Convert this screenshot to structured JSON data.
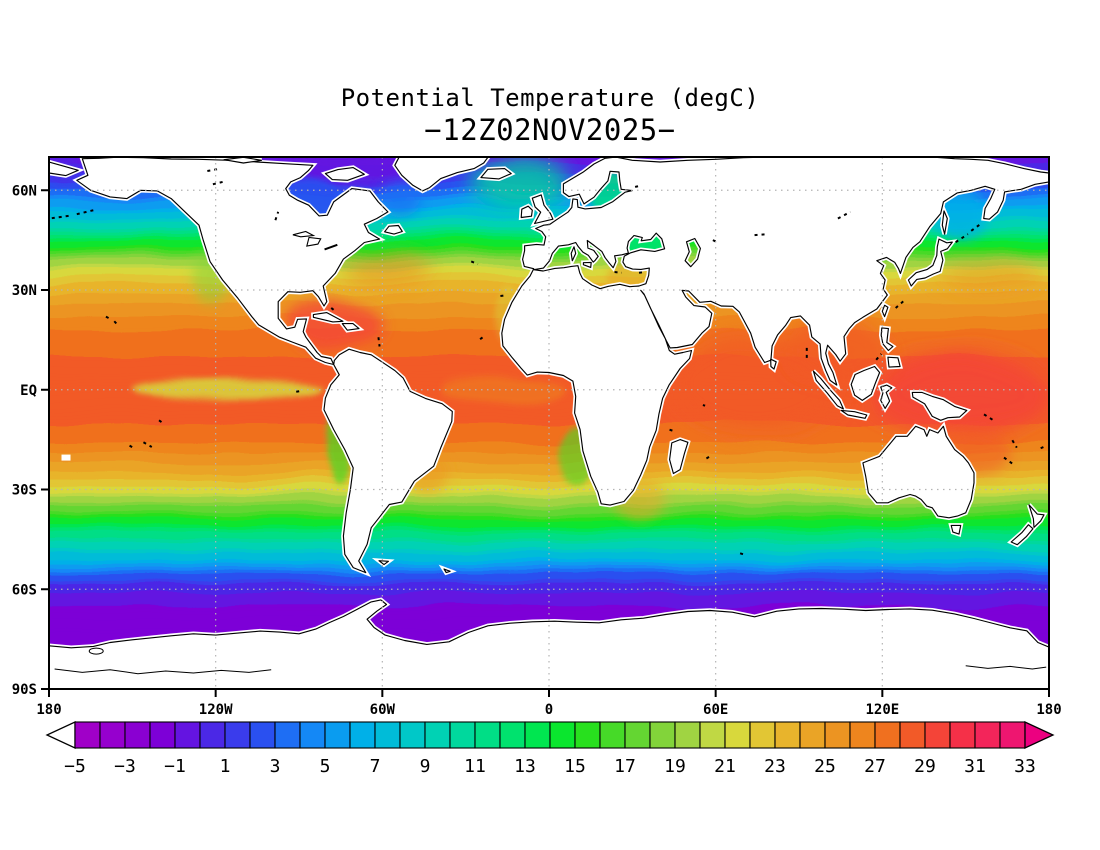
{
  "title": {
    "line1": "Potential Temperature (degC)",
    "line2": "−12Z02NOV2025−"
  },
  "map": {
    "lat_ticks": [
      {
        "label": "60N",
        "lat": 60
      },
      {
        "label": "30N",
        "lat": 30
      },
      {
        "label": "EQ",
        "lat": 0
      },
      {
        "label": "30S",
        "lat": -30
      },
      {
        "label": "60S",
        "lat": -60
      },
      {
        "label": "90S",
        "lat": -90
      }
    ],
    "lon_ticks": [
      {
        "label": "180",
        "lon": -180
      },
      {
        "label": "120W",
        "lon": -120
      },
      {
        "label": "60W",
        "lon": -60
      },
      {
        "label": "0",
        "lon": 0
      },
      {
        "label": "60E",
        "lon": 60
      },
      {
        "label": "120E",
        "lon": 120
      },
      {
        "label": "180",
        "lon": 180
      }
    ],
    "grid_lats": [
      60,
      30,
      0,
      -30,
      -60
    ],
    "grid_lons": [
      -120,
      -60,
      0,
      60,
      120
    ],
    "grid_color": "#b4b4b4",
    "land_color": "#ffffff",
    "coast_color": "#000000"
  },
  "colorbar": {
    "tick_labels": [
      "−5",
      "−3",
      "−1",
      "1",
      "3",
      "5",
      "7",
      "9",
      "11",
      "13",
      "15",
      "17",
      "19",
      "21",
      "23",
      "25",
      "27",
      "29",
      "31",
      "33"
    ],
    "tick_values": [
      -5,
      -3,
      -1,
      1,
      3,
      5,
      7,
      9,
      11,
      13,
      15,
      17,
      19,
      21,
      23,
      25,
      27,
      29,
      31,
      33
    ],
    "cell_min": -5,
    "cell_max": 33,
    "cell_step": 1,
    "under_color": "#ffffff",
    "over_color": "#ec0080",
    "colors": [
      "#a000c8",
      "#9600ce",
      "#8a00d2",
      "#7d00d7",
      "#6414e1",
      "#4b28e6",
      "#3a3cec",
      "#2a50f0",
      "#1e6ef4",
      "#1488f6",
      "#0a9cf0",
      "#00b0e8",
      "#00bcd8",
      "#00c8c8",
      "#00d2b4",
      "#00d89d",
      "#00de86",
      "#00e26e",
      "#00e650",
      "#0ae62e",
      "#28e01e",
      "#46da28",
      "#64d632",
      "#82d43a",
      "#a0d442",
      "#c0d844",
      "#d8d83c",
      "#e2c634",
      "#e8b42c",
      "#eaa426",
      "#ec9422",
      "#ee851e",
      "#f0701f",
      "#f25a28",
      "#f44438",
      "#f53048",
      "#f3255a",
      "#ee1670"
    ]
  },
  "chart_data": {
    "type": "heatmap",
    "title": "Potential Temperature (degC)",
    "subtitle": "−12Z02NOV2025−",
    "units": "degC",
    "projection": "equirectangular",
    "lon_range": [
      -180,
      180
    ],
    "lat_range": [
      -90,
      70
    ],
    "x_ticks": [
      "180",
      "120W",
      "60W",
      "0",
      "60E",
      "120E",
      "180"
    ],
    "y_ticks": [
      "60N",
      "30N",
      "EQ",
      "30S",
      "60S",
      "90S"
    ],
    "grid": "dotted, every 30 deg lat / 60 deg lon",
    "legend_position": "bottom horizontal colorbar",
    "contour_interval_degC": 1,
    "colorbar_levels": [
      -5,
      -3,
      -1,
      1,
      3,
      5,
      7,
      9,
      11,
      13,
      15,
      17,
      19,
      21,
      23,
      25,
      27,
      29,
      31,
      33
    ],
    "zonal_mean_temp": [
      [
        70,
        -0.5
      ],
      [
        66,
        0.5
      ],
      [
        62,
        2
      ],
      [
        60,
        3
      ],
      [
        56,
        5.5
      ],
      [
        52,
        8
      ],
      [
        48,
        11
      ],
      [
        44,
        14.5
      ],
      [
        40,
        18
      ],
      [
        36,
        21
      ],
      [
        32,
        23
      ],
      [
        28,
        24.5
      ],
      [
        24,
        25.5
      ],
      [
        20,
        26.5
      ],
      [
        15,
        27.5
      ],
      [
        8,
        28.2
      ],
      [
        0,
        28
      ],
      [
        -8,
        28.2
      ],
      [
        -14,
        27.5
      ],
      [
        -18,
        26.5
      ],
      [
        -22,
        25
      ],
      [
        -26,
        23.5
      ],
      [
        -30,
        21.5
      ],
      [
        -34,
        19
      ],
      [
        -38,
        16
      ],
      [
        -42,
        13
      ],
      [
        -46,
        10
      ],
      [
        -50,
        7.5
      ],
      [
        -53,
        5
      ],
      [
        -56,
        2.5
      ],
      [
        -59,
        0.5
      ],
      [
        -62,
        -0.5
      ],
      [
        -66,
        -1.2
      ],
      [
        -90,
        -1.5
      ]
    ],
    "features": [
      "warm pool above 29 degC in western tropical Pacific, Indian Ocean and Caribbean",
      "equatorial Pacific cold tongue near 22 degC off South America",
      "Hudson Bay, Labrador Sea and Arctic margin below 2 degC",
      "Southern Ocean below 0 degC poleward of 60S, purple band along Antarctica",
      "Mediterranean yellow-orange near 21-24 degC",
      "land masses blank white with black coastlines"
    ]
  }
}
